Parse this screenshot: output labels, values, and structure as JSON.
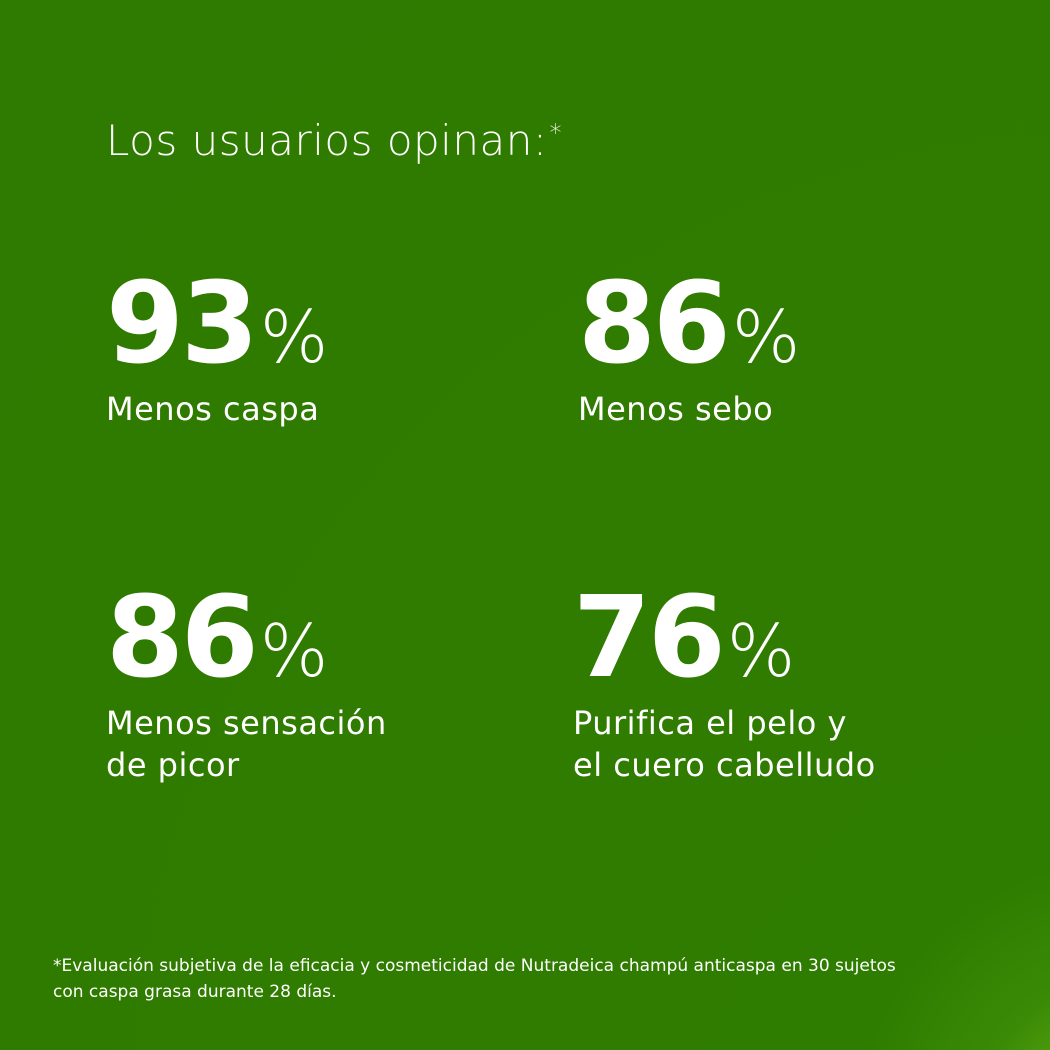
{
  "title": {
    "text": "Los usuarios opinan:",
    "mark": "*"
  },
  "stats": [
    {
      "number": "93",
      "unit": "%",
      "label": [
        "Menos caspa"
      ]
    },
    {
      "number": "86",
      "unit": "%",
      "label": [
        "Menos sebo"
      ]
    },
    {
      "number": "86",
      "unit": "%",
      "label": [
        "Menos sensación",
        "de picor"
      ]
    },
    {
      "number": "76",
      "unit": "%",
      "label": [
        "Purifica el pelo y",
        "el cuero cabelludo"
      ]
    }
  ],
  "footnote": [
    "*Evaluación subjetiva de la eficacia y cosmeticidad de Nutradeica champú anticaspa en 30 sujetos",
    "con caspa grasa durante 28 días."
  ]
}
